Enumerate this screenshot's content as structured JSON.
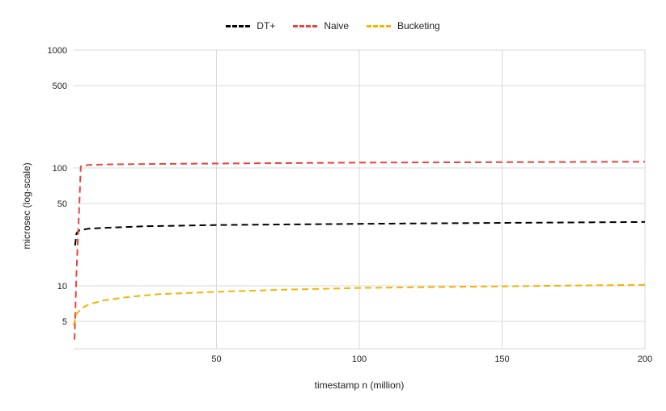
{
  "chart_data": {
    "type": "line",
    "xlabel": "timestamp n (million)",
    "ylabel": "microsec (log-scale)",
    "xlim": [
      0,
      200
    ],
    "ylim": [
      3.5,
      1000
    ],
    "y_scale": "log",
    "x_ticks": [
      50,
      100,
      150,
      200
    ],
    "y_ticks": [
      5,
      10,
      50,
      100,
      500,
      1000
    ],
    "grid": true,
    "legend_position": "top",
    "series": [
      {
        "name": "DT+",
        "color": "#000000",
        "dashed": true,
        "x": [
          0.5,
          1,
          2,
          5,
          10,
          25,
          50,
          100,
          150,
          200
        ],
        "y": [
          22,
          28,
          29.5,
          30.5,
          31,
          32,
          32.8,
          33.6,
          34.2,
          34.8
        ]
      },
      {
        "name": "Naive",
        "color": "#e8453c",
        "dashed": true,
        "x": [
          0.3,
          1,
          2,
          2.5,
          5,
          10,
          25,
          50,
          100,
          150,
          200
        ],
        "y": [
          3.5,
          13,
          50,
          103,
          106,
          107,
          108,
          109,
          111,
          112,
          113
        ]
      },
      {
        "name": "Bucketing",
        "color": "#f4b400",
        "dashed": true,
        "x": [
          0,
          1,
          3,
          5,
          10,
          20,
          30,
          50,
          75,
          100,
          150,
          200
        ],
        "y": [
          4.6,
          5.8,
          6.5,
          6.9,
          7.5,
          8.1,
          8.5,
          8.9,
          9.3,
          9.6,
          9.9,
          10.2
        ]
      }
    ]
  }
}
